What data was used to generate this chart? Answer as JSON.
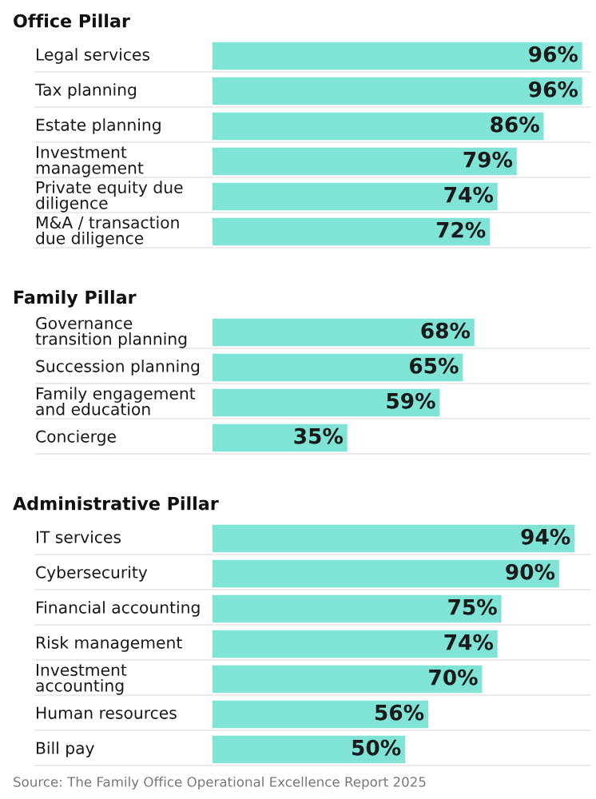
{
  "chart_data": [
    {
      "type": "bar",
      "orientation": "horizontal",
      "title": "Office Pillar",
      "categories": [
        "Legal services",
        "Tax planning",
        "Estate planning",
        "Investment management",
        "Private equity due diligence",
        "M&A / transaction due diligence"
      ],
      "values": [
        96,
        96,
        86,
        79,
        74,
        72
      ],
      "value_labels": [
        "96%",
        "96%",
        "86%",
        "79%",
        "74%",
        "72%"
      ],
      "color": "#7fe3d5",
      "tick_labels": false
    },
    {
      "type": "bar",
      "orientation": "horizontal",
      "title": "Family Pillar",
      "categories": [
        "Governance transition planning",
        "Succession planning",
        "Family engagement and education",
        "Concierge"
      ],
      "values": [
        68,
        65,
        59,
        35
      ],
      "value_labels": [
        "68%",
        "65%",
        "59%",
        "35%"
      ],
      "color": "#7fe3d5",
      "tick_labels": false
    },
    {
      "type": "bar",
      "orientation": "horizontal",
      "title": "Administrative Pillar",
      "categories": [
        "IT services",
        "Cybersecurity",
        "Financial accounting",
        "Risk management",
        "Investment accounting",
        "Human resources",
        "Bill pay"
      ],
      "values": [
        94,
        90,
        75,
        74,
        70,
        56,
        50
      ],
      "value_labels": [
        "94%",
        "90%",
        "75%",
        "74%",
        "70%",
        "56%",
        "50%"
      ],
      "color": "#7fe3d5",
      "tick_labels": false,
      "annotations": [
        "Source: The Family Office Operational Excellence Report 2025"
      ]
    }
  ]
}
